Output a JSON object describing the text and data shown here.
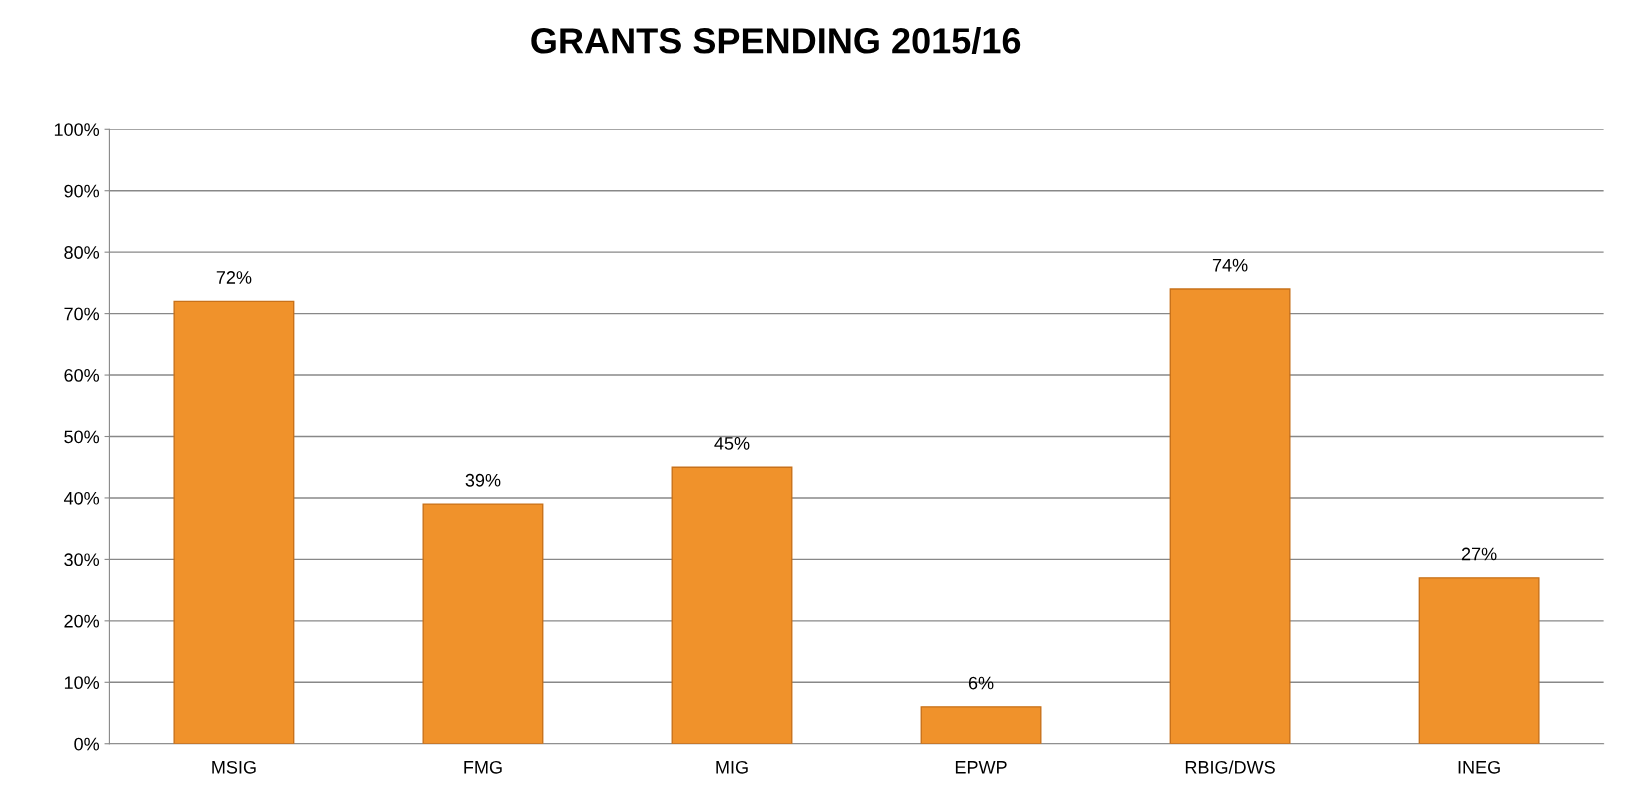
{
  "chart_data": {
    "type": "bar",
    "title": "GRANTS SPENDING 2015/16",
    "categories": [
      "MSIG",
      "FMG",
      "MIG",
      "EPWP",
      "RBIG/DWS",
      "INEG"
    ],
    "values": [
      72,
      39,
      45,
      6,
      74,
      27
    ],
    "value_labels": [
      "72%",
      "39%",
      "45%",
      "6%",
      "74%",
      "27%"
    ],
    "color": "#f0922b",
    "ylim": [
      0,
      100
    ],
    "yticks": [
      {
        "value": 0,
        "label": "0%"
      },
      {
        "value": 10,
        "label": "10%"
      },
      {
        "value": 20,
        "label": "20%"
      },
      {
        "value": 30,
        "label": "30%"
      },
      {
        "value": 40,
        "label": "40%"
      },
      {
        "value": 50,
        "label": "50%"
      },
      {
        "value": 60,
        "label": "60%"
      },
      {
        "value": 70,
        "label": "70%"
      },
      {
        "value": 80,
        "label": "80%"
      },
      {
        "value": 90,
        "label": "90%"
      },
      {
        "value": 100,
        "label": "100%"
      }
    ],
    "grid": "y"
  }
}
